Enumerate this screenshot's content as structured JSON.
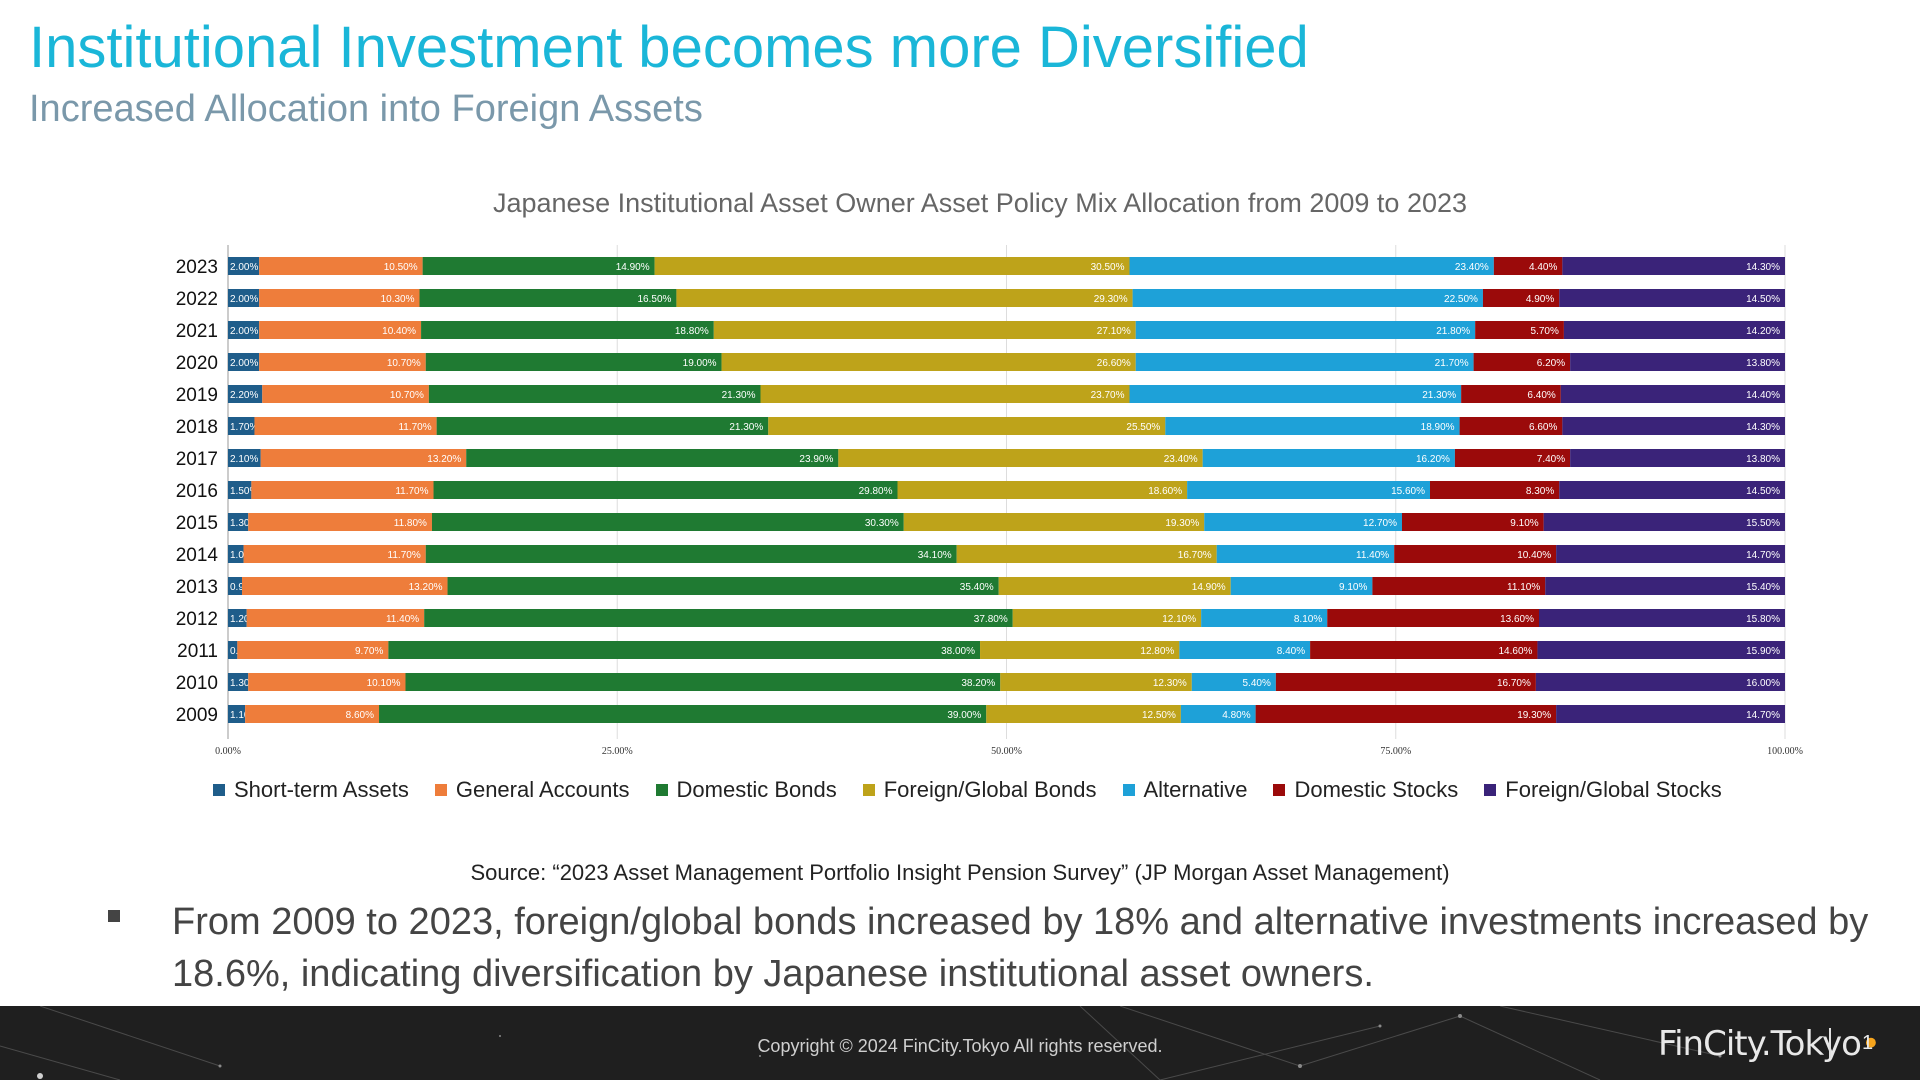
{
  "header": {
    "title": "Institutional Investment becomes more Diversified",
    "subtitle": "Increased Allocation into Foreign Assets"
  },
  "chart_data": {
    "type": "bar",
    "orientation": "horizontal",
    "stacked": true,
    "title": "Japanese Institutional Asset Owner Asset Policy Mix Allocation from 2009 to 2023",
    "categories": [
      "2023",
      "2022",
      "2021",
      "2020",
      "2019",
      "2018",
      "2017",
      "2016",
      "2015",
      "2014",
      "2013",
      "2012",
      "2011",
      "2010",
      "2009"
    ],
    "xlim": [
      0,
      100
    ],
    "x_ticks": [
      "0.00%",
      "25.00%",
      "50.00%",
      "75.00%",
      "100.00%"
    ],
    "grid": true,
    "legend_position": "bottom",
    "series": [
      {
        "name": "Short-term Assets",
        "color": "#1f5d8a",
        "values": [
          2.0,
          2.0,
          2.0,
          2.0,
          2.2,
          1.7,
          2.1,
          1.5,
          1.3,
          1.0,
          0.9,
          1.2,
          0.6,
          1.3,
          1.1
        ]
      },
      {
        "name": "General Accounts",
        "color": "#ee7d3b",
        "values": [
          10.5,
          10.3,
          10.4,
          10.7,
          10.7,
          11.7,
          13.2,
          11.7,
          11.8,
          11.7,
          13.2,
          11.4,
          9.7,
          10.1,
          8.6
        ]
      },
      {
        "name": "Domestic Bonds",
        "color": "#1f7a32",
        "values": [
          14.9,
          16.5,
          18.8,
          19.0,
          21.3,
          21.3,
          23.9,
          29.8,
          30.3,
          34.1,
          35.4,
          37.8,
          38.0,
          38.2,
          39.0
        ]
      },
      {
        "name": "Foreign/Global Bonds",
        "color": "#bea31a",
        "values": [
          30.5,
          29.3,
          27.1,
          26.6,
          23.7,
          25.5,
          23.4,
          18.6,
          19.3,
          16.7,
          14.9,
          12.1,
          12.8,
          12.3,
          12.5
        ]
      },
      {
        "name": "Alternative",
        "color": "#1ea1d8",
        "values": [
          23.4,
          22.5,
          21.8,
          21.7,
          21.3,
          18.9,
          16.2,
          15.6,
          12.7,
          11.4,
          9.1,
          8.1,
          8.4,
          5.4,
          4.8
        ]
      },
      {
        "name": "Domestic Stocks",
        "color": "#9b0a0a",
        "values": [
          4.4,
          4.9,
          5.7,
          6.2,
          6.4,
          6.6,
          7.4,
          8.3,
          9.1,
          10.4,
          11.1,
          13.6,
          14.6,
          16.7,
          19.3
        ]
      },
      {
        "name": "Foreign/Global Stocks",
        "color": "#3a2379",
        "values": [
          14.3,
          14.5,
          14.2,
          13.8,
          14.4,
          14.3,
          13.8,
          14.5,
          15.5,
          14.7,
          15.4,
          15.8,
          15.9,
          16.0,
          14.7
        ]
      }
    ]
  },
  "source": "Source: “2023 Asset Management Portfolio Insight Pension Survey” (JP Morgan Asset Management)",
  "bullet": "From 2009 to 2023, foreign/global bonds increased by 18% and alternative investments increased by 18.6%, indicating diversification by Japanese institutional asset owners.",
  "footer": {
    "copyright": "Copyright © 2024 FinCity.Tokyo All rights reserved.",
    "logo_text": "FinCity.Tokyo",
    "page_number": "1"
  }
}
